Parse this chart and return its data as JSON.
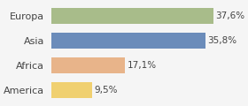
{
  "categories": [
    "America",
    "Africa",
    "Asia",
    "Europa"
  ],
  "values": [
    9.5,
    17.1,
    35.8,
    37.6
  ],
  "labels": [
    "9,5%",
    "17,1%",
    "35,8%",
    "37,6%"
  ],
  "bar_colors": [
    "#f0d070",
    "#e8b48a",
    "#6b8cba",
    "#a8bc8a"
  ],
  "background_color": "#f5f5f5",
  "xlim": [
    0,
    44
  ]
}
